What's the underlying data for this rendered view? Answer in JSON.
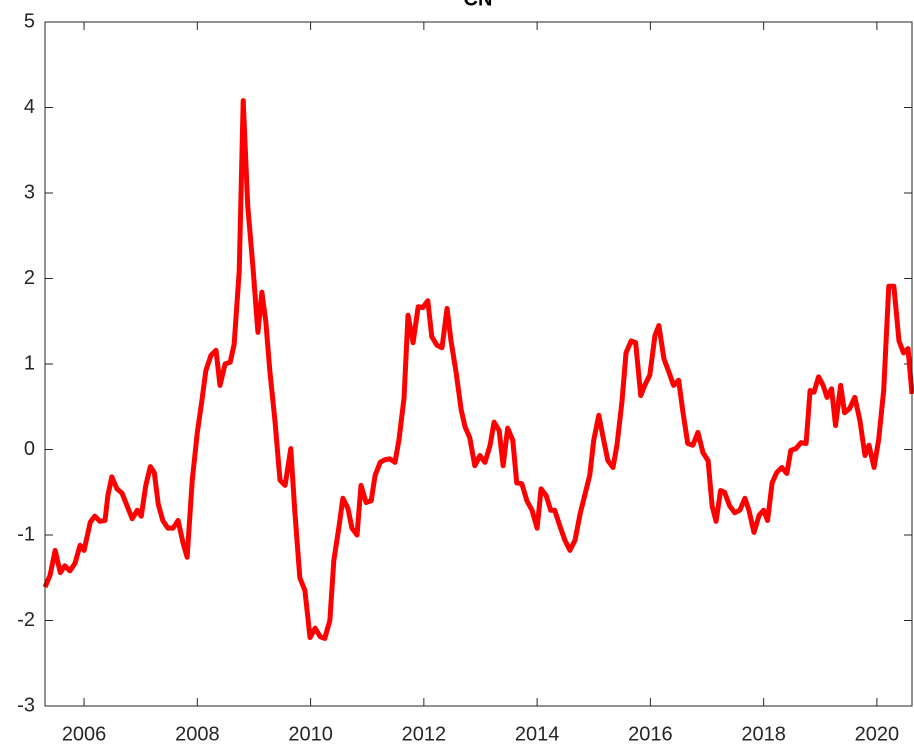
{
  "chart_data": {
    "type": "line",
    "title": "CN",
    "x": [
      2005.31,
      2005.4,
      2005.49,
      2005.58,
      2005.66,
      2005.75,
      2005.84,
      2005.93,
      2006.0,
      2006.11,
      2006.19,
      2006.28,
      2006.37,
      2006.42,
      2006.49,
      2006.58,
      2006.67,
      2006.76,
      2006.85,
      2006.94,
      2007.01,
      2007.09,
      2007.17,
      2007.24,
      2007.31,
      2007.39,
      2007.48,
      2007.57,
      2007.66,
      2007.75,
      2007.82,
      2007.91,
      2008.0,
      2008.08,
      2008.15,
      2008.24,
      2008.33,
      2008.4,
      2008.49,
      2008.58,
      2008.65,
      2008.74,
      2008.81,
      2008.89,
      2008.98,
      2009.07,
      2009.14,
      2009.21,
      2009.28,
      2009.37,
      2009.46,
      2009.55,
      2009.65,
      2009.72,
      2009.81,
      2009.9,
      2009.99,
      2010.08,
      2010.17,
      2010.25,
      2010.34,
      2010.41,
      2010.5,
      2010.57,
      2010.66,
      2010.73,
      2010.82,
      2010.89,
      2010.98,
      2011.07,
      2011.14,
      2011.23,
      2011.31,
      2011.4,
      2011.49,
      2011.56,
      2011.65,
      2011.72,
      2011.81,
      2011.9,
      2011.98,
      2012.07,
      2012.14,
      2012.23,
      2012.32,
      2012.41,
      2012.48,
      2012.57,
      2012.66,
      2012.73,
      2012.81,
      2012.9,
      2012.99,
      2013.08,
      2013.17,
      2013.24,
      2013.33,
      2013.4,
      2013.48,
      2013.57,
      2013.64,
      2013.73,
      2013.82,
      2013.91,
      2014.0,
      2014.07,
      2014.16,
      2014.24,
      2014.31,
      2014.4,
      2014.49,
      2014.58,
      2014.67,
      2014.76,
      2014.84,
      2014.93,
      2015.0,
      2015.09,
      2015.16,
      2015.25,
      2015.34,
      2015.41,
      2015.5,
      2015.57,
      2015.66,
      2015.74,
      2015.83,
      2015.9,
      2015.99,
      2016.08,
      2016.15,
      2016.24,
      2016.33,
      2016.41,
      2016.5,
      2016.57,
      2016.66,
      2016.75,
      2016.84,
      2016.93,
      2017.02,
      2017.09,
      2017.16,
      2017.24,
      2017.31,
      2017.4,
      2017.49,
      2017.58,
      2017.67,
      2017.74,
      2017.83,
      2017.92,
      2018.0,
      2018.07,
      2018.15,
      2018.23,
      2018.32,
      2018.41,
      2018.48,
      2018.57,
      2018.66,
      2018.75,
      2018.82,
      2018.89,
      2018.97,
      2019.05,
      2019.12,
      2019.2,
      2019.27,
      2019.36,
      2019.43,
      2019.52,
      2019.61,
      2019.7,
      2019.79,
      2019.86,
      2019.95,
      2020.03,
      2020.12,
      2020.21,
      2020.3,
      2020.39,
      2020.47,
      2020.55,
      2020.62
    ],
    "series": [
      {
        "color": "#ff0000",
        "values": [
          -1.61,
          -1.47,
          -1.18,
          -1.44,
          -1.36,
          -1.42,
          -1.33,
          -1.12,
          -1.18,
          -0.85,
          -0.78,
          -0.84,
          -0.83,
          -0.54,
          -0.32,
          -0.46,
          -0.51,
          -0.66,
          -0.81,
          -0.71,
          -0.78,
          -0.42,
          -0.2,
          -0.27,
          -0.64,
          -0.83,
          -0.92,
          -0.92,
          -0.83,
          -1.1,
          -1.26,
          -0.36,
          0.2,
          0.57,
          0.92,
          1.1,
          1.16,
          0.75,
          1.0,
          1.02,
          1.23,
          2.09,
          4.08,
          2.85,
          2.15,
          1.37,
          1.84,
          1.49,
          0.92,
          0.34,
          -0.36,
          -0.42,
          0.01,
          -0.71,
          -1.5,
          -1.65,
          -2.2,
          -2.09,
          -2.19,
          -2.21,
          -2.0,
          -1.3,
          -0.91,
          -0.57,
          -0.69,
          -0.92,
          -1.0,
          -0.42,
          -0.62,
          -0.6,
          -0.3,
          -0.15,
          -0.12,
          -0.11,
          -0.15,
          0.11,
          0.6,
          1.57,
          1.25,
          1.67,
          1.66,
          1.74,
          1.32,
          1.22,
          1.19,
          1.65,
          1.27,
          0.9,
          0.46,
          0.26,
          0.14,
          -0.19,
          -0.07,
          -0.15,
          0.05,
          0.32,
          0.22,
          -0.19,
          0.25,
          0.11,
          -0.39,
          -0.4,
          -0.6,
          -0.71,
          -0.92,
          -0.46,
          -0.54,
          -0.71,
          -0.71,
          -0.89,
          -1.06,
          -1.18,
          -1.06,
          -0.75,
          -0.54,
          -0.3,
          0.11,
          0.4,
          0.16,
          -0.13,
          -0.21,
          0.05,
          0.57,
          1.13,
          1.27,
          1.25,
          0.63,
          0.75,
          0.87,
          1.33,
          1.45,
          1.06,
          0.9,
          0.75,
          0.81,
          0.46,
          0.07,
          0.05,
          0.2,
          -0.04,
          -0.13,
          -0.66,
          -0.84,
          -0.48,
          -0.5,
          -0.66,
          -0.74,
          -0.71,
          -0.57,
          -0.71,
          -0.97,
          -0.77,
          -0.71,
          -0.83,
          -0.39,
          -0.27,
          -0.21,
          -0.28,
          -0.01,
          0.01,
          0.08,
          0.07,
          0.69,
          0.67,
          0.85,
          0.75,
          0.61,
          0.71,
          0.28,
          0.75,
          0.43,
          0.48,
          0.61,
          0.34,
          -0.07,
          0.05,
          -0.21,
          0.11,
          0.69,
          1.91,
          1.91,
          1.27,
          1.13,
          1.18,
          0.65
        ]
      }
    ],
    "xlim": [
      2005.31,
      2020.62
    ],
    "xticks": [
      2006,
      2008,
      2010,
      2012,
      2014,
      2016,
      2018,
      2020
    ],
    "ylim": [
      -3,
      5
    ],
    "yticks": [
      -3,
      -2,
      -1,
      0,
      1,
      2,
      3,
      4,
      5
    ]
  }
}
